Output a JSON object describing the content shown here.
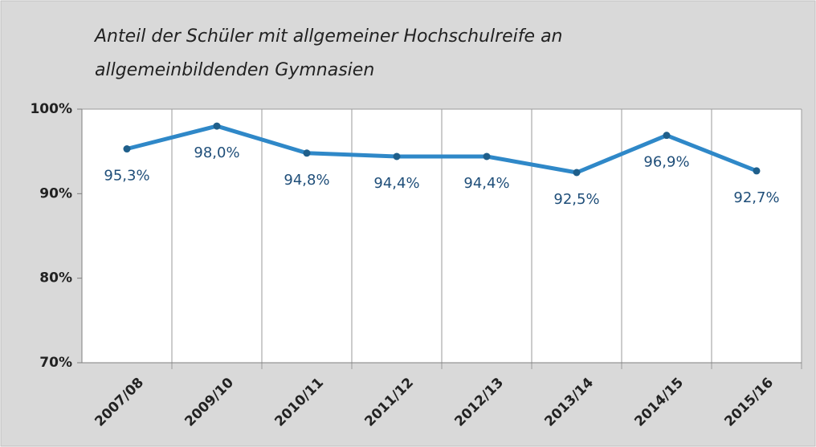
{
  "chart_data": {
    "type": "line",
    "title": [
      "Anteil der Schüler mit allgemeiner Hochschulreife an",
      "allgemeinbildenden Gymnasien"
    ],
    "categories": [
      "2007/08",
      "2009/10",
      "2010/11",
      "2011/12",
      "2012/13",
      "2013/14",
      "2014/15",
      "2015/16"
    ],
    "values": [
      95.3,
      98.0,
      94.8,
      94.4,
      94.4,
      92.5,
      96.9,
      92.7
    ],
    "value_labels": [
      "95,3%",
      "98,0%",
      "94,8%",
      "94,4%",
      "94,4%",
      "92,5%",
      "96,9%",
      "92,7%"
    ],
    "color": "#2f88c8",
    "marker_color": "#1f5f8b",
    "label_color": "#1f4e79",
    "ylim": [
      70,
      100
    ],
    "yticks": [
      {
        "value": 70,
        "label": "70%"
      },
      {
        "value": 80,
        "label": "80%"
      },
      {
        "value": 90,
        "label": "90%"
      },
      {
        "value": 100,
        "label": "100%"
      }
    ]
  }
}
